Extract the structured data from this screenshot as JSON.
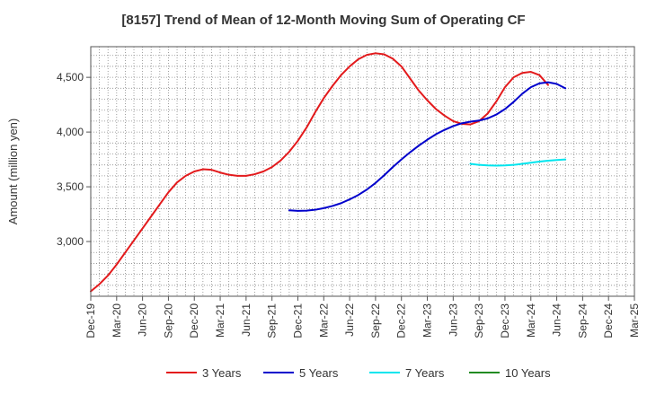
{
  "chart_data": {
    "type": "line",
    "title": "[8157]  Trend of Mean of 12-Month Moving Sum of Operating CF",
    "xlabel": "",
    "ylabel": "Amount (million yen)",
    "ylim": [
      2500,
      4780
    ],
    "yticks": [
      3000,
      3500,
      4000,
      4500
    ],
    "ytick_labels": [
      "3,000",
      "3,500",
      "4,000",
      "4,500"
    ],
    "xlim": [
      "Dec-19",
      "Mar-25"
    ],
    "xticks": [
      "Dec-19",
      "Mar-20",
      "Jun-20",
      "Sep-20",
      "Dec-20",
      "Mar-21",
      "Jun-21",
      "Sep-21",
      "Dec-21",
      "Mar-22",
      "Jun-22",
      "Sep-22",
      "Dec-22",
      "Mar-23",
      "Jun-23",
      "Sep-23",
      "Dec-23",
      "Mar-24",
      "Jun-24",
      "Sep-24",
      "Dec-24",
      "Mar-25"
    ],
    "grid": true,
    "legend_position": "bottom",
    "series": [
      {
        "name": "3 Years",
        "color": "#e31a1c",
        "start": "Dec-19",
        "values": [
          2545,
          2610,
          2690,
          2790,
          2900,
          3010,
          3120,
          3230,
          3340,
          3450,
          3540,
          3600,
          3640,
          3660,
          3655,
          3630,
          3610,
          3600,
          3600,
          3615,
          3640,
          3680,
          3740,
          3820,
          3920,
          4040,
          4180,
          4310,
          4420,
          4520,
          4600,
          4665,
          4705,
          4720,
          4710,
          4670,
          4600,
          4490,
          4380,
          4290,
          4210,
          4150,
          4100,
          4075,
          4070,
          4100,
          4170,
          4280,
          4410,
          4500,
          4540,
          4550,
          4520,
          4430
        ]
      },
      {
        "name": "5 Years",
        "color": "#0000cc",
        "start": "Nov-21",
        "values": [
          3285,
          3280,
          3282,
          3290,
          3305,
          3325,
          3350,
          3385,
          3425,
          3475,
          3535,
          3605,
          3680,
          3750,
          3815,
          3875,
          3930,
          3980,
          4020,
          4055,
          4080,
          4095,
          4105,
          4125,
          4160,
          4210,
          4275,
          4350,
          4410,
          4445,
          4455,
          4440,
          4400
        ]
      },
      {
        "name": "7 Years",
        "color": "#00e5ee",
        "start": "Aug-23",
        "values": [
          3710,
          3700,
          3695,
          3693,
          3695,
          3700,
          3710,
          3720,
          3730,
          3738,
          3745,
          3750
        ]
      },
      {
        "name": "10 Years",
        "color": "#228b22",
        "start": "Sep-24",
        "values": []
      }
    ]
  }
}
